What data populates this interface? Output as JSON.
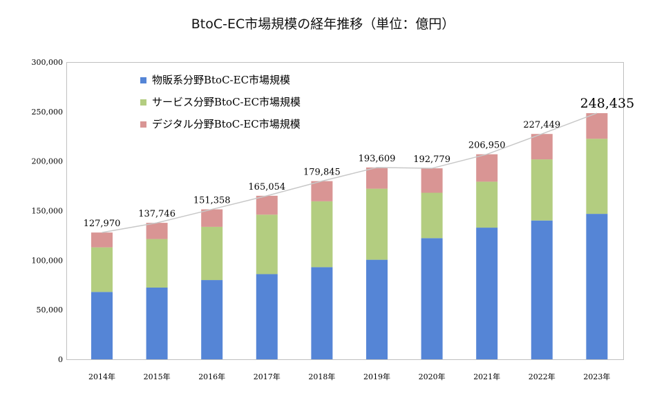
{
  "title": "BtoC-EC市場規模の経年推移（単位：億円）",
  "chart_data": {
    "type": "bar",
    "stacked": true,
    "categories": [
      "2014年",
      "2015年",
      "2016年",
      "2017年",
      "2018年",
      "2019年",
      "2020年",
      "2021年",
      "2022年",
      "2023年"
    ],
    "series": [
      {
        "name": "物販系分野BtoC-EC市場規模",
        "color": "#5585d6",
        "values": [
          68000,
          72400,
          80000,
          86000,
          93000,
          100500,
          122300,
          132900,
          140100,
          146800
        ]
      },
      {
        "name": "サービス分野BtoC-EC市場規模",
        "color": "#b3cd80",
        "values": [
          45000,
          49000,
          53700,
          60000,
          66500,
          71700,
          45800,
          46400,
          61700,
          75800
        ]
      },
      {
        "name": "デジタル分野BtoC-EC市場規模",
        "color": "#d99594",
        "values": [
          14970,
          16346,
          17658,
          19054,
          20345,
          21409,
          24679,
          27650,
          25649,
          25835
        ]
      }
    ],
    "totals": [
      127970,
      137746,
      151358,
      165054,
      179845,
      193609,
      192779,
      206950,
      227449,
      248435
    ],
    "total_labels": [
      "127,970",
      "137,746",
      "151,358",
      "165,054",
      "179,845",
      "193,609",
      "192,779",
      "206,950",
      "227,449",
      "248,435"
    ],
    "y_ticks": [
      "0",
      "50,000",
      "100,000",
      "150,000",
      "200,000",
      "250,000",
      "300,000"
    ],
    "ylim": [
      0,
      300000
    ],
    "grid": false,
    "legend_position": "top-left",
    "total_line_color": "#c8c8c8"
  }
}
